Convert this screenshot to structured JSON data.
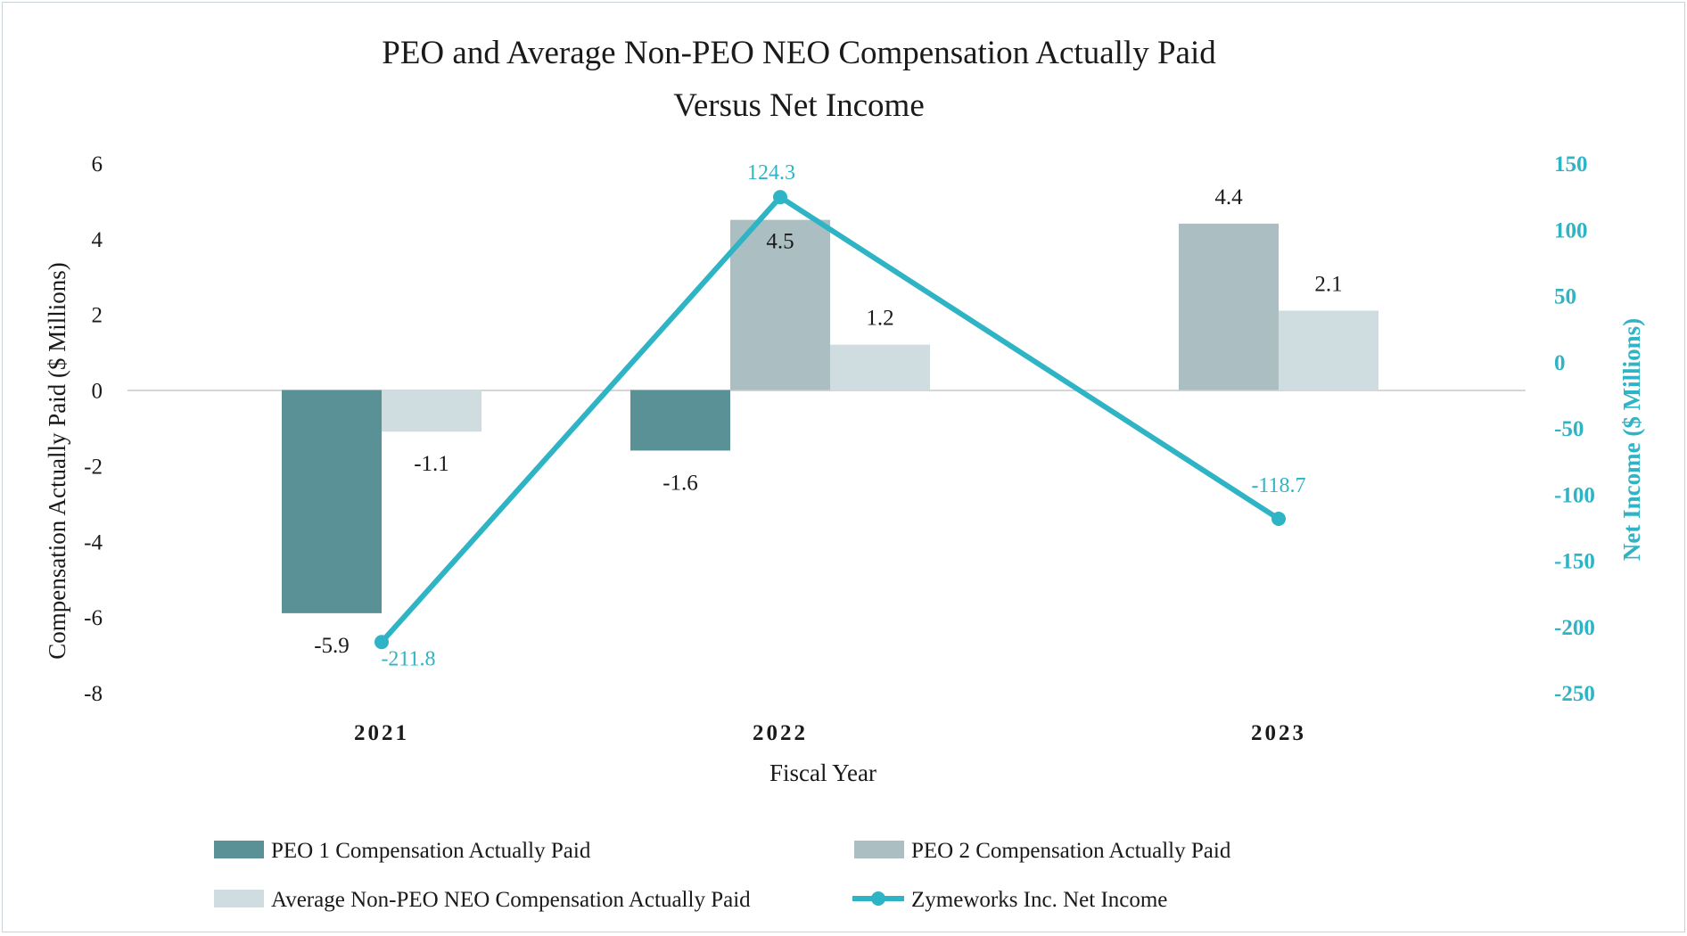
{
  "chart_data": {
    "type": "bar",
    "title_line1": "PEO and Average Non-PEO NEO Compensation Actually Paid",
    "title_line2": "Versus Net Income",
    "xlabel": "Fiscal Year",
    "ylabel_left": "Compensation Actually Paid ($ Millions)",
    "ylabel_right": "Net Income ($ Millions)",
    "ylim_left": [
      -8,
      6
    ],
    "ylim_right": [
      -250,
      150
    ],
    "yticks_left": [
      "6",
      "4",
      "2",
      "0",
      "-2",
      "-4",
      "-6",
      "-8"
    ],
    "yticks_right": [
      "150",
      "100",
      "50",
      "0",
      "-50",
      "-100",
      "-150",
      "-200",
      "-250"
    ],
    "categories": [
      "2021",
      "2022",
      "2023"
    ],
    "series": [
      {
        "name": "PEO 1 Compensation Actually Paid",
        "type": "bar",
        "axis": "left",
        "color": "#5a9196",
        "values": [
          -5.9,
          -1.6,
          null
        ],
        "labels": [
          "-5.9",
          "-1.6",
          ""
        ]
      },
      {
        "name": "PEO 2 Compensation Actually Paid",
        "type": "bar",
        "axis": "left",
        "color": "#abbfc3",
        "values": [
          null,
          4.5,
          4.4
        ],
        "labels": [
          "",
          "4.5",
          "4.4"
        ]
      },
      {
        "name": "Average Non-PEO NEO Compensation Actually Paid",
        "type": "bar",
        "axis": "left",
        "color": "#d0dde0",
        "values": [
          -1.1,
          1.2,
          2.1
        ],
        "labels": [
          "-1.1",
          "1.2",
          "2.1"
        ]
      },
      {
        "name": "Zymeworks Inc. Net Income",
        "type": "line",
        "axis": "right",
        "color": "#2fb4c5",
        "values": [
          -211.8,
          124.3,
          -118.7
        ],
        "labels": [
          "-211.8",
          "124.3",
          "-118.7"
        ]
      }
    ],
    "grid": false,
    "legend_position": "bottom"
  }
}
